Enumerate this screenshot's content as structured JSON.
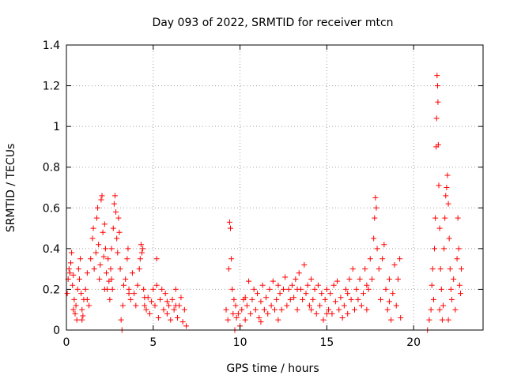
{
  "chart_data": {
    "type": "scatter",
    "title": "Day 093 of 2022, SRMTID for receiver mtcn",
    "xlabel": "GPS time / hours",
    "ylabel": "SRMTID / TECUs",
    "xlim": [
      0,
      24
    ],
    "ylim": [
      0,
      1.4
    ],
    "x_ticks": [
      0,
      5,
      10,
      15,
      20
    ],
    "x_tick_labels": [
      "0",
      "5",
      "10",
      "15",
      "20"
    ],
    "y_ticks": [
      0,
      0.2,
      0.4,
      0.6,
      0.8,
      1.0,
      1.2,
      1.4
    ],
    "y_tick_labels": [
      "0",
      "0.2",
      "0.4",
      "0.6",
      "0.8",
      "1",
      "1.2",
      "1.4"
    ],
    "grid": true,
    "marker": "+",
    "color": "#ff0000",
    "series": [
      {
        "name": "SRMTID",
        "points": [
          [
            0.05,
            0.18
          ],
          [
            0.1,
            0.25
          ],
          [
            0.15,
            0.3
          ],
          [
            0.2,
            0.28
          ],
          [
            0.25,
            0.33
          ],
          [
            0.3,
            0.38
          ],
          [
            0.35,
            0.22
          ],
          [
            0.4,
            0.27
          ],
          [
            0.45,
            0.15
          ],
          [
            0.5,
            0.08
          ],
          [
            0.55,
            0.12
          ],
          [
            0.6,
            0.05
          ],
          [
            0.65,
            0.2
          ],
          [
            0.7,
            0.3
          ],
          [
            0.75,
            0.25
          ],
          [
            0.8,
            0.35
          ],
          [
            0.85,
            0.18
          ],
          [
            0.9,
            0.1
          ],
          [
            0.95,
            0.07
          ],
          [
            1.0,
            0.15
          ],
          [
            1.1,
            0.2
          ],
          [
            1.2,
            0.28
          ],
          [
            1.3,
            0.12
          ],
          [
            1.4,
            0.35
          ],
          [
            1.5,
            0.45
          ],
          [
            1.55,
            0.5
          ],
          [
            1.6,
            0.3
          ],
          [
            1.7,
            0.38
          ],
          [
            1.75,
            0.55
          ],
          [
            1.8,
            0.6
          ],
          [
            1.85,
            0.42
          ],
          [
            1.9,
            0.25
          ],
          [
            1.95,
            0.32
          ],
          [
            2.0,
            0.64
          ],
          [
            2.05,
            0.66
          ],
          [
            2.1,
            0.48
          ],
          [
            2.15,
            0.36
          ],
          [
            2.2,
            0.52
          ],
          [
            2.25,
            0.4
          ],
          [
            2.3,
            0.28
          ],
          [
            2.35,
            0.2
          ],
          [
            2.4,
            0.35
          ],
          [
            2.45,
            0.24
          ],
          [
            2.5,
            0.15
          ],
          [
            2.55,
            0.3
          ],
          [
            2.6,
            0.4
          ],
          [
            2.65,
            0.2
          ],
          [
            2.7,
            0.5
          ],
          [
            2.75,
            0.62
          ],
          [
            2.8,
            0.66
          ],
          [
            2.85,
            0.58
          ],
          [
            2.9,
            0.45
          ],
          [
            2.95,
            0.38
          ],
          [
            3.0,
            0.55
          ],
          [
            3.05,
            0.48
          ],
          [
            3.1,
            0.3
          ],
          [
            3.15,
            0.05
          ],
          [
            3.2,
            0.0
          ],
          [
            3.25,
            0.12
          ],
          [
            3.3,
            0.22
          ],
          [
            3.4,
            0.25
          ],
          [
            3.5,
            0.35
          ],
          [
            3.55,
            0.4
          ],
          [
            3.6,
            0.2
          ],
          [
            3.7,
            0.15
          ],
          [
            3.8,
            0.28
          ],
          [
            3.9,
            0.18
          ],
          [
            4.0,
            0.12
          ],
          [
            4.1,
            0.22
          ],
          [
            4.2,
            0.3
          ],
          [
            4.25,
            0.35
          ],
          [
            4.3,
            0.42
          ],
          [
            4.35,
            0.38
          ],
          [
            4.4,
            0.4
          ],
          [
            4.45,
            0.2
          ],
          [
            4.5,
            0.12
          ],
          [
            4.6,
            0.1
          ],
          [
            4.7,
            0.16
          ],
          [
            4.8,
            0.08
          ],
          [
            4.9,
            0.14
          ],
          [
            5.0,
            0.2
          ],
          [
            5.1,
            0.12
          ],
          [
            5.2,
            0.35
          ],
          [
            5.3,
            0.06
          ],
          [
            5.4,
            0.15
          ],
          [
            5.5,
            0.2
          ],
          [
            5.6,
            0.1
          ],
          [
            5.7,
            0.18
          ],
          [
            5.8,
            0.08
          ],
          [
            5.9,
            0.12
          ],
          [
            6.0,
            0.05
          ],
          [
            6.1,
            0.15
          ],
          [
            6.2,
            0.1
          ],
          [
            6.3,
            0.2
          ],
          [
            6.4,
            0.06
          ],
          [
            6.5,
            0.12
          ],
          [
            6.6,
            0.16
          ],
          [
            6.7,
            0.04
          ],
          [
            6.8,
            0.1
          ],
          [
            6.9,
            0.02
          ],
          [
            2.2,
            0.2
          ],
          [
            2.6,
            0.25
          ],
          [
            3.6,
            0.18
          ],
          [
            4.5,
            0.16
          ],
          [
            5.2,
            0.22
          ],
          [
            5.8,
            0.14
          ],
          [
            6.3,
            0.12
          ],
          [
            1.2,
            0.15
          ],
          [
            0.4,
            0.1
          ],
          [
            0.9,
            0.05
          ],
          [
            9.2,
            0.1
          ],
          [
            9.3,
            0.05
          ],
          [
            9.35,
            0.3
          ],
          [
            9.4,
            0.53
          ],
          [
            9.45,
            0.5
          ],
          [
            9.5,
            0.35
          ],
          [
            9.55,
            0.2
          ],
          [
            9.6,
            0.08
          ],
          [
            9.65,
            0.15
          ],
          [
            9.7,
            0.0
          ],
          [
            9.75,
            0.12
          ],
          [
            9.8,
            0.06
          ],
          [
            9.9,
            0.08
          ],
          [
            10.0,
            0.02
          ],
          [
            10.1,
            0.1
          ],
          [
            10.2,
            0.15
          ],
          [
            10.3,
            0.05
          ],
          [
            10.4,
            0.12
          ],
          [
            10.5,
            0.24
          ],
          [
            10.6,
            0.08
          ],
          [
            10.7,
            0.15
          ],
          [
            10.8,
            0.2
          ],
          [
            10.9,
            0.1
          ],
          [
            11.0,
            0.18
          ],
          [
            11.1,
            0.06
          ],
          [
            11.2,
            0.14
          ],
          [
            11.3,
            0.22
          ],
          [
            11.4,
            0.1
          ],
          [
            11.5,
            0.16
          ],
          [
            11.6,
            0.08
          ],
          [
            11.7,
            0.2
          ],
          [
            11.8,
            0.12
          ],
          [
            11.9,
            0.24
          ],
          [
            12.0,
            0.1
          ],
          [
            12.1,
            0.15
          ],
          [
            12.2,
            0.05
          ],
          [
            12.3,
            0.18
          ],
          [
            12.4,
            0.1
          ],
          [
            12.5,
            0.2
          ],
          [
            12.6,
            0.26
          ],
          [
            12.7,
            0.12
          ],
          [
            12.8,
            0.2
          ],
          [
            12.9,
            0.15
          ],
          [
            13.0,
            0.22
          ],
          [
            13.1,
            0.16
          ],
          [
            13.2,
            0.25
          ],
          [
            13.3,
            0.1
          ],
          [
            13.4,
            0.28
          ],
          [
            13.5,
            0.2
          ],
          [
            13.6,
            0.15
          ],
          [
            13.7,
            0.32
          ],
          [
            13.8,
            0.18
          ],
          [
            13.9,
            0.22
          ],
          [
            14.0,
            0.12
          ],
          [
            14.1,
            0.25
          ],
          [
            14.2,
            0.15
          ],
          [
            14.3,
            0.2
          ],
          [
            14.4,
            0.08
          ],
          [
            14.5,
            0.22
          ],
          [
            14.6,
            0.12
          ],
          [
            14.7,
            0.18
          ],
          [
            14.8,
            0.05
          ],
          [
            14.9,
            0.15
          ],
          [
            15.0,
            0.2
          ],
          [
            15.1,
            0.1
          ],
          [
            15.2,
            0.18
          ],
          [
            15.3,
            0.08
          ],
          [
            15.4,
            0.22
          ],
          [
            15.5,
            0.14
          ],
          [
            15.6,
            0.24
          ],
          [
            15.7,
            0.1
          ],
          [
            15.8,
            0.16
          ],
          [
            15.9,
            0.06
          ],
          [
            16.0,
            0.12
          ],
          [
            16.1,
            0.2
          ],
          [
            16.2,
            0.08
          ],
          [
            16.3,
            0.25
          ],
          [
            16.4,
            0.15
          ],
          [
            16.5,
            0.3
          ],
          [
            16.6,
            0.1
          ],
          [
            16.7,
            0.2
          ],
          [
            16.8,
            0.15
          ],
          [
            16.9,
            0.25
          ],
          [
            17.0,
            0.12
          ],
          [
            17.1,
            0.18
          ],
          [
            17.2,
            0.3
          ],
          [
            17.3,
            0.1
          ],
          [
            17.4,
            0.2
          ],
          [
            17.5,
            0.35
          ],
          [
            17.6,
            0.25
          ],
          [
            17.7,
            0.45
          ],
          [
            17.75,
            0.55
          ],
          [
            17.8,
            0.65
          ],
          [
            17.85,
            0.6
          ],
          [
            17.9,
            0.4
          ],
          [
            18.0,
            0.3
          ],
          [
            18.1,
            0.15
          ],
          [
            18.2,
            0.35
          ],
          [
            18.3,
            0.42
          ],
          [
            18.4,
            0.2
          ],
          [
            18.5,
            0.1
          ],
          [
            18.6,
            0.25
          ],
          [
            18.7,
            0.05
          ],
          [
            18.8,
            0.18
          ],
          [
            18.9,
            0.32
          ],
          [
            19.0,
            0.12
          ],
          [
            19.1,
            0.25
          ],
          [
            19.2,
            0.35
          ],
          [
            19.25,
            0.06
          ],
          [
            10.3,
            0.16
          ],
          [
            11.2,
            0.04
          ],
          [
            12.2,
            0.22
          ],
          [
            13.3,
            0.2
          ],
          [
            14.1,
            0.1
          ],
          [
            15.0,
            0.08
          ],
          [
            16.2,
            0.18
          ],
          [
            17.3,
            0.22
          ],
          [
            18.6,
            0.14
          ],
          [
            20.8,
            0.0
          ],
          [
            20.9,
            0.05
          ],
          [
            21.0,
            0.1
          ],
          [
            21.05,
            0.22
          ],
          [
            21.1,
            0.3
          ],
          [
            21.15,
            0.15
          ],
          [
            21.2,
            0.4
          ],
          [
            21.25,
            0.55
          ],
          [
            21.3,
            0.9
          ],
          [
            21.32,
            1.04
          ],
          [
            21.35,
            1.25
          ],
          [
            21.38,
            1.2
          ],
          [
            21.4,
            1.12
          ],
          [
            21.42,
            0.91
          ],
          [
            21.45,
            0.71
          ],
          [
            21.5,
            0.5
          ],
          [
            21.55,
            0.3
          ],
          [
            21.6,
            0.2
          ],
          [
            21.65,
            0.05
          ],
          [
            21.7,
            0.12
          ],
          [
            21.75,
            0.4
          ],
          [
            21.8,
            0.55
          ],
          [
            21.85,
            0.66
          ],
          [
            21.9,
            0.7
          ],
          [
            21.95,
            0.76
          ],
          [
            22.0,
            0.62
          ],
          [
            22.05,
            0.45
          ],
          [
            22.1,
            0.3
          ],
          [
            22.15,
            0.2
          ],
          [
            22.2,
            0.15
          ],
          [
            22.3,
            0.25
          ],
          [
            22.4,
            0.1
          ],
          [
            22.5,
            0.35
          ],
          [
            22.55,
            0.55
          ],
          [
            22.6,
            0.4
          ],
          [
            22.65,
            0.22
          ],
          [
            22.7,
            0.18
          ],
          [
            22.75,
            0.3
          ],
          [
            21.5,
            0.1
          ],
          [
            22.0,
            0.05
          ]
        ]
      }
    ]
  }
}
